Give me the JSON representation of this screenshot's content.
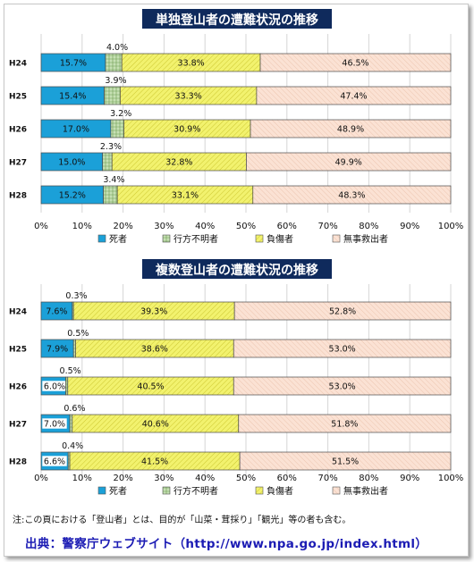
{
  "colors": {
    "death": "#1ba0d8",
    "missing": "#c6e0b4",
    "injured": "#f2f26e",
    "rescued": "#fbe2d4",
    "title_bg": "#0f2a5c",
    "title_text": "#ffffff"
  },
  "chart_data": [
    {
      "type": "bar",
      "orientation": "horizontal",
      "stacked": true,
      "title": "単独登山者の遭難状況の推移",
      "categories": [
        "H24",
        "H25",
        "H26",
        "H27",
        "H28"
      ],
      "series": [
        {
          "name": "死者",
          "values": [
            15.7,
            15.4,
            17.0,
            15.0,
            15.2
          ],
          "labels": [
            "15.7%",
            "15.4%",
            "17.0%",
            "15.0%",
            "15.2%"
          ]
        },
        {
          "name": "行方不明者",
          "values": [
            4.0,
            3.9,
            3.2,
            2.3,
            3.4
          ],
          "labels": [
            "4.0%",
            "3.9%",
            "3.2%",
            "2.3%",
            "3.4%"
          ]
        },
        {
          "name": "負傷者",
          "values": [
            33.8,
            33.3,
            30.9,
            32.8,
            33.1
          ],
          "labels": [
            "33.8%",
            "33.3%",
            "30.9%",
            "32.8%",
            "33.1%"
          ]
        },
        {
          "name": "無事救出者",
          "values": [
            46.5,
            47.4,
            48.9,
            49.9,
            48.3
          ],
          "labels": [
            "46.5%",
            "47.4%",
            "48.9%",
            "49.9%",
            "48.3%"
          ]
        }
      ],
      "xlim": [
        0,
        100
      ],
      "xticks": [
        "0%",
        "10%",
        "20%",
        "30%",
        "40%",
        "50%",
        "60%",
        "70%",
        "80%",
        "90%",
        "100%"
      ],
      "legend": "bottom"
    },
    {
      "type": "bar",
      "orientation": "horizontal",
      "stacked": true,
      "title": "複数登山者の遭難状況の推移",
      "categories": [
        "H24",
        "H25",
        "H26",
        "H27",
        "H28"
      ],
      "series": [
        {
          "name": "死者",
          "values": [
            7.6,
            7.9,
            6.0,
            7.0,
            6.6
          ],
          "labels": [
            "7.6%",
            "7.9%",
            "6.0%",
            "7.0%",
            "6.6%"
          ]
        },
        {
          "name": "行方不明者",
          "values": [
            0.3,
            0.5,
            0.5,
            0.6,
            0.4
          ],
          "labels": [
            "0.3%",
            "0.5%",
            "0.5%",
            "0.6%",
            "0.4%"
          ]
        },
        {
          "name": "負傷者",
          "values": [
            39.3,
            38.6,
            40.5,
            40.6,
            41.5
          ],
          "labels": [
            "39.3%",
            "38.6%",
            "40.5%",
            "40.6%",
            "41.5%"
          ]
        },
        {
          "name": "無事救出者",
          "values": [
            52.8,
            53.0,
            53.0,
            51.8,
            51.5
          ],
          "labels": [
            "52.8%",
            "53.0%",
            "53.0%",
            "51.8%",
            "51.5%"
          ]
        }
      ],
      "xlim": [
        0,
        100
      ],
      "xticks": [
        "0%",
        "10%",
        "20%",
        "30%",
        "40%",
        "50%",
        "60%",
        "70%",
        "80%",
        "90%",
        "100%"
      ],
      "legend": "bottom"
    }
  ],
  "footer": {
    "note": "注:この頁における「登山者」とは、目的が「山菜・茸採り」「観光」等の者も含む。",
    "source": "出典：警察庁ウェブサイト（http://www.npa.go.jp/index.html）"
  }
}
